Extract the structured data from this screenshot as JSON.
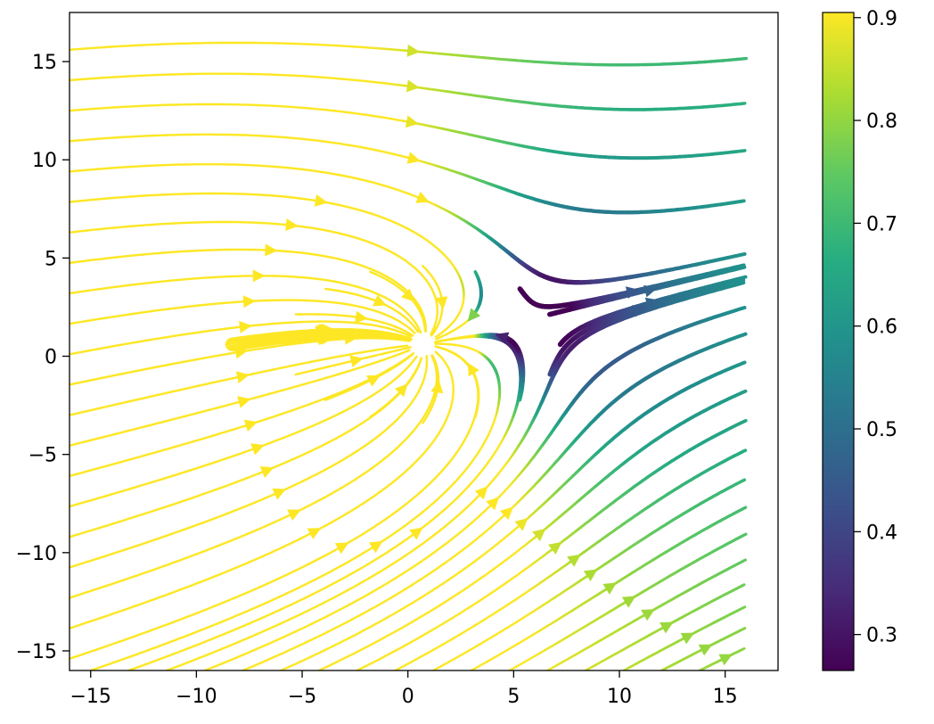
{
  "chart_data": {
    "type": "streamplot",
    "title": "",
    "xlabel": "",
    "ylabel": "",
    "xlim": [
      -16,
      17.5
    ],
    "ylim": [
      -16,
      17.5
    ],
    "x_ticks": [
      -15,
      -10,
      -5,
      0,
      5,
      10,
      15
    ],
    "y_ticks": [
      -15,
      -10,
      -5,
      0,
      5,
      10,
      15
    ],
    "x_tick_labels": [
      "−15",
      "−10",
      "−5",
      "0",
      "5",
      "10",
      "15"
    ],
    "y_tick_labels": [
      "−15",
      "−10",
      "−5",
      "0",
      "5",
      "10",
      "15"
    ],
    "grid": false,
    "legend": "none",
    "field": {
      "description": "uniform flow toward +x/+y plus a sink near the origin",
      "uniform_u": 0.85,
      "uniform_v": 0.22,
      "sink_center": [
        0.7,
        0.6
      ],
      "sink_strength": 4.5
    },
    "domain": {
      "x": [
        -16,
        16
      ],
      "y": [
        -16,
        16
      ]
    },
    "colorbar": {
      "colormap": "viridis",
      "min": 0.265,
      "max": 0.905,
      "ticks": [
        0.3,
        0.4,
        0.5,
        0.6,
        0.7,
        0.8,
        0.9
      ],
      "tick_labels": [
        "0.3",
        "0.4",
        "0.5",
        "0.6",
        "0.7",
        "0.8",
        "0.9"
      ]
    }
  }
}
